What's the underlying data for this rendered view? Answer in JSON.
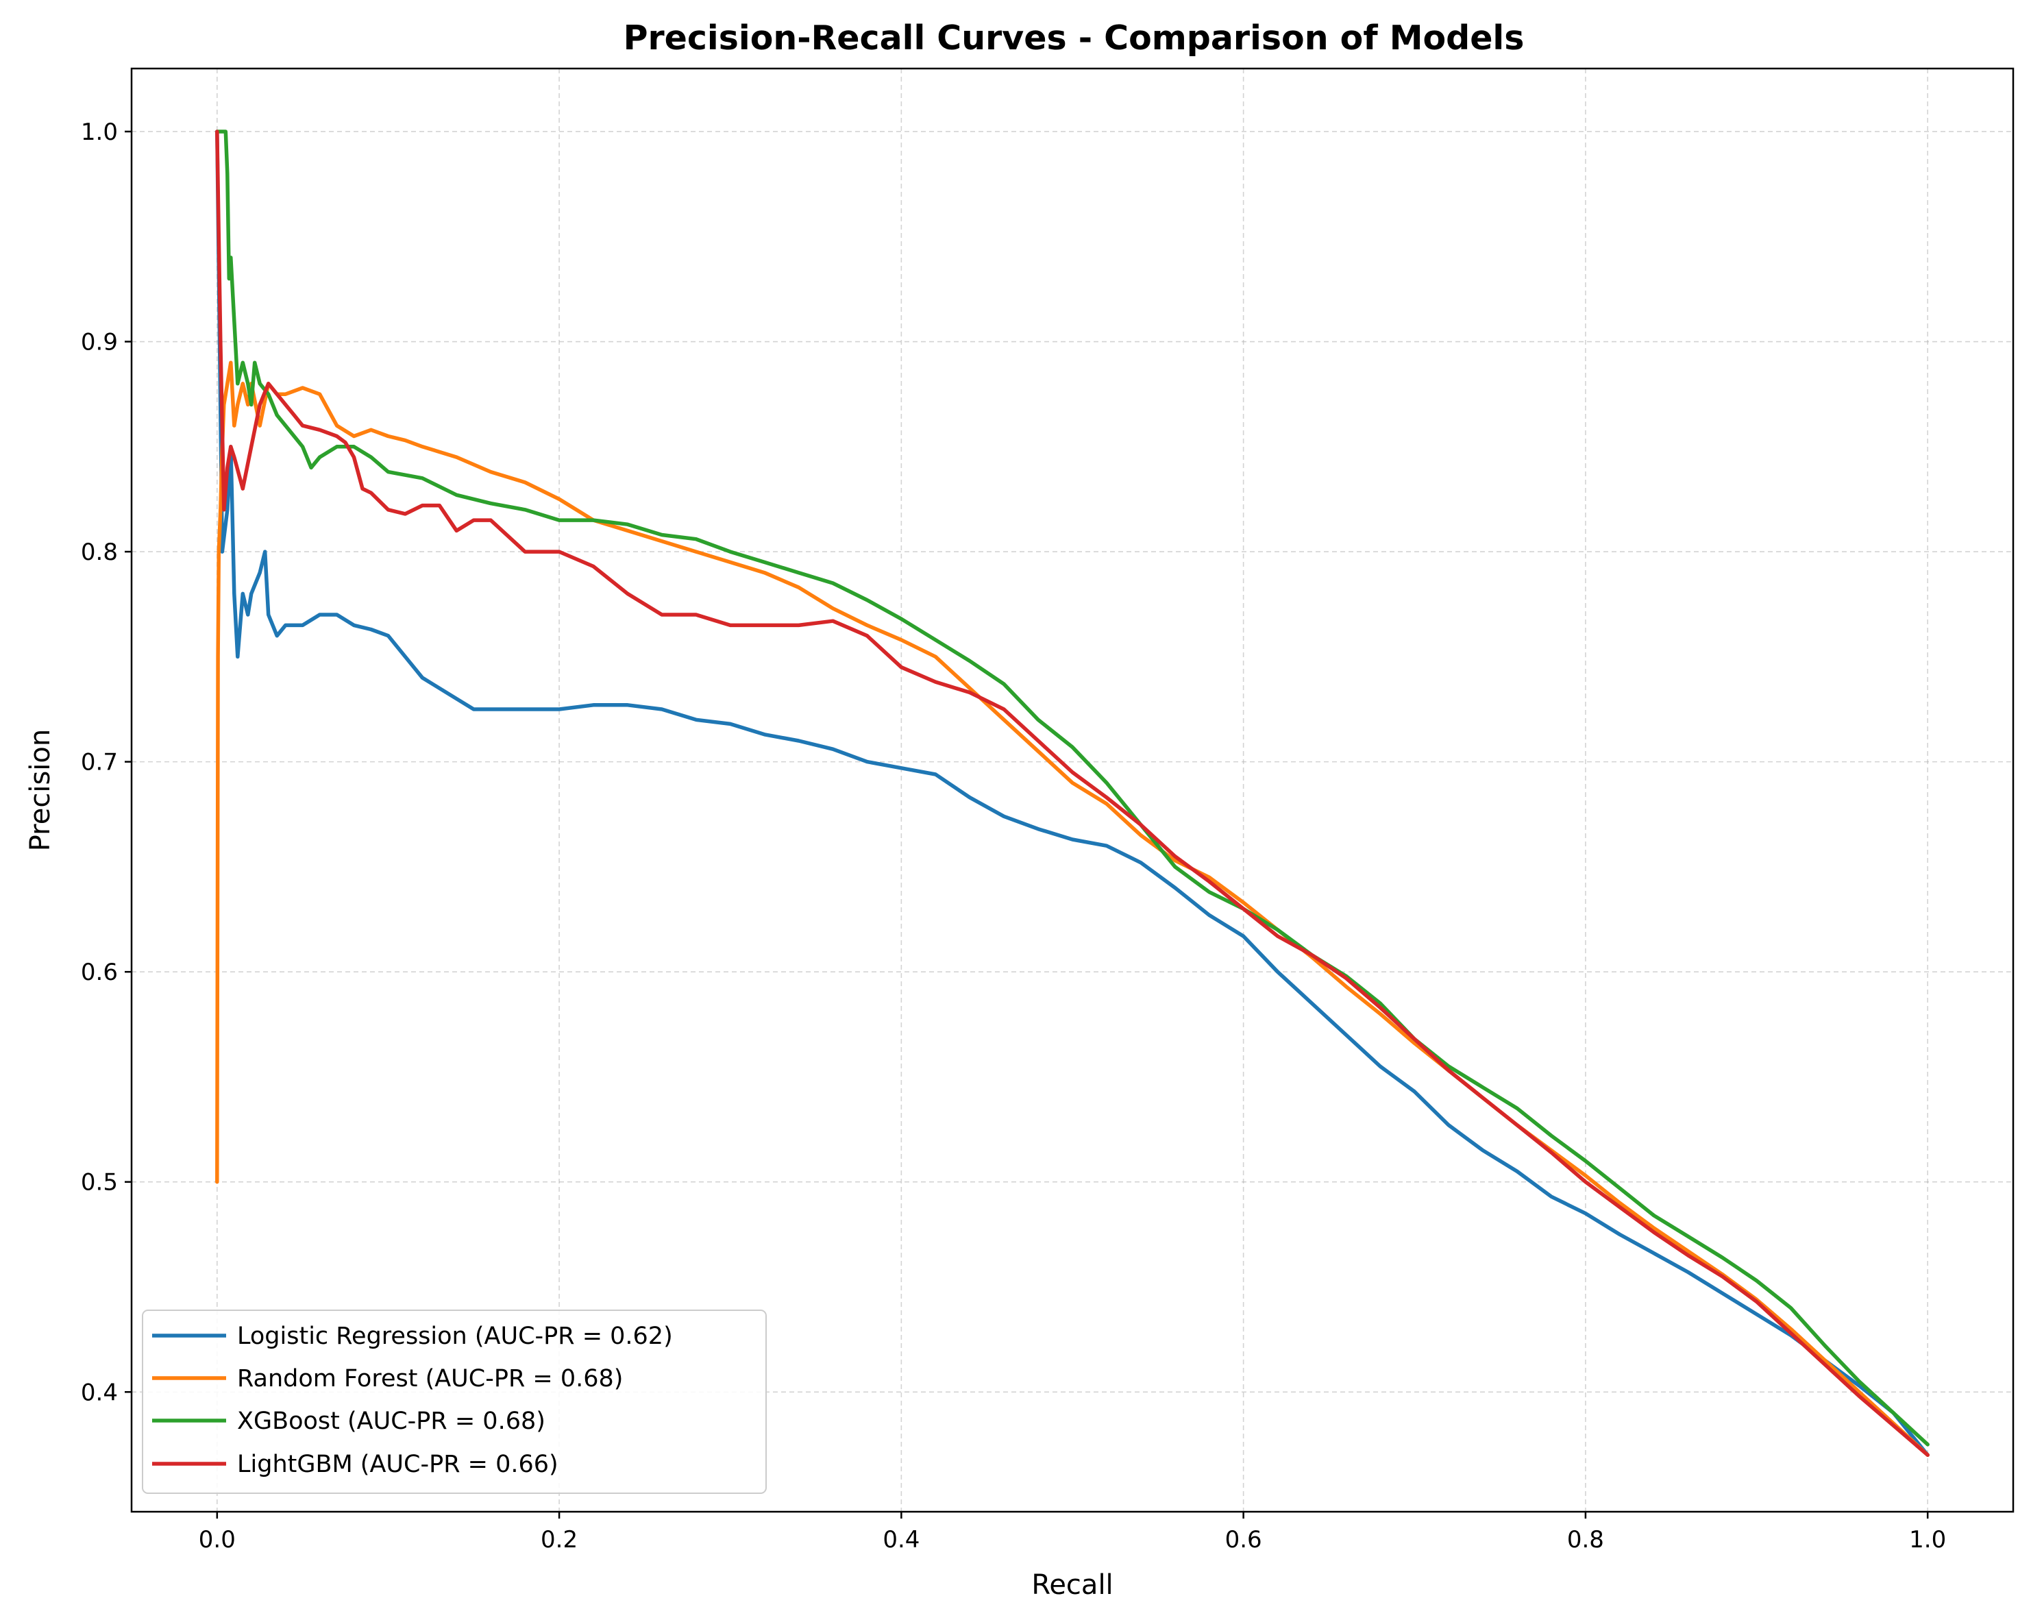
{
  "chart_data": {
    "type": "line",
    "title": "Precision-Recall Curves - Comparison of Models",
    "xlabel": "Recall",
    "ylabel": "Precision",
    "xlim": [
      -0.05,
      1.05
    ],
    "ylim": [
      0.343,
      1.03
    ],
    "x_ticks": [
      0.0,
      0.2,
      0.4,
      0.6,
      0.8,
      1.0
    ],
    "y_ticks": [
      0.4,
      0.5,
      0.6,
      0.7,
      0.8,
      0.9,
      1.0
    ],
    "grid": true,
    "legend_position": "lower-left",
    "series": [
      {
        "name": "Logistic Regression (AUC-PR = 0.62)",
        "color": "#1f77b4",
        "x": [
          0.0,
          0.003,
          0.006,
          0.008,
          0.01,
          0.012,
          0.015,
          0.018,
          0.02,
          0.025,
          0.028,
          0.03,
          0.035,
          0.04,
          0.05,
          0.06,
          0.07,
          0.08,
          0.09,
          0.1,
          0.11,
          0.12,
          0.13,
          0.14,
          0.15,
          0.16,
          0.18,
          0.2,
          0.22,
          0.24,
          0.26,
          0.28,
          0.3,
          0.32,
          0.34,
          0.36,
          0.38,
          0.4,
          0.42,
          0.44,
          0.46,
          0.48,
          0.5,
          0.52,
          0.54,
          0.56,
          0.58,
          0.6,
          0.62,
          0.64,
          0.66,
          0.68,
          0.7,
          0.72,
          0.74,
          0.76,
          0.78,
          0.8,
          0.82,
          0.84,
          0.86,
          0.88,
          0.9,
          0.92,
          0.94,
          0.96,
          0.98,
          1.0
        ],
        "values": [
          1.0,
          0.8,
          0.82,
          0.85,
          0.78,
          0.75,
          0.78,
          0.77,
          0.78,
          0.79,
          0.8,
          0.77,
          0.76,
          0.765,
          0.765,
          0.77,
          0.77,
          0.765,
          0.763,
          0.76,
          0.75,
          0.74,
          0.735,
          0.73,
          0.725,
          0.725,
          0.725,
          0.725,
          0.727,
          0.727,
          0.725,
          0.72,
          0.718,
          0.713,
          0.71,
          0.706,
          0.7,
          0.697,
          0.694,
          0.683,
          0.674,
          0.668,
          0.663,
          0.66,
          0.652,
          0.64,
          0.627,
          0.617,
          0.6,
          0.585,
          0.57,
          0.555,
          0.543,
          0.527,
          0.515,
          0.505,
          0.493,
          0.485,
          0.475,
          0.466,
          0.457,
          0.447,
          0.437,
          0.427,
          0.415,
          0.403,
          0.39,
          0.37
        ]
      },
      {
        "name": "Random Forest (AUC-PR = 0.68)",
        "color": "#ff7f0e",
        "x": [
          0.0,
          0.0005,
          0.001,
          0.002,
          0.003,
          0.004,
          0.006,
          0.008,
          0.01,
          0.012,
          0.015,
          0.018,
          0.02,
          0.025,
          0.03,
          0.035,
          0.04,
          0.05,
          0.06,
          0.07,
          0.08,
          0.09,
          0.1,
          0.11,
          0.12,
          0.14,
          0.16,
          0.18,
          0.2,
          0.22,
          0.24,
          0.26,
          0.28,
          0.3,
          0.32,
          0.34,
          0.36,
          0.38,
          0.4,
          0.42,
          0.44,
          0.46,
          0.48,
          0.5,
          0.52,
          0.54,
          0.56,
          0.58,
          0.6,
          0.62,
          0.64,
          0.66,
          0.68,
          0.7,
          0.72,
          0.74,
          0.76,
          0.78,
          0.8,
          0.82,
          0.84,
          0.86,
          0.88,
          0.9,
          0.92,
          0.94,
          0.96,
          0.98,
          1.0
        ],
        "values": [
          0.5,
          0.75,
          0.8,
          0.82,
          0.85,
          0.87,
          0.88,
          0.89,
          0.86,
          0.87,
          0.88,
          0.87,
          0.88,
          0.86,
          0.88,
          0.875,
          0.875,
          0.878,
          0.875,
          0.86,
          0.855,
          0.858,
          0.855,
          0.853,
          0.85,
          0.845,
          0.838,
          0.833,
          0.825,
          0.815,
          0.81,
          0.805,
          0.8,
          0.795,
          0.79,
          0.783,
          0.773,
          0.765,
          0.758,
          0.75,
          0.735,
          0.72,
          0.705,
          0.69,
          0.68,
          0.665,
          0.653,
          0.645,
          0.633,
          0.62,
          0.607,
          0.593,
          0.58,
          0.566,
          0.553,
          0.54,
          0.527,
          0.515,
          0.503,
          0.49,
          0.478,
          0.467,
          0.456,
          0.444,
          0.43,
          0.415,
          0.4,
          0.385,
          0.37
        ]
      },
      {
        "name": "XGBoost (AUC-PR = 0.68)",
        "color": "#2ca02c",
        "x": [
          0.0,
          0.005,
          0.006,
          0.007,
          0.008,
          0.01,
          0.012,
          0.015,
          0.018,
          0.02,
          0.022,
          0.025,
          0.03,
          0.035,
          0.04,
          0.05,
          0.055,
          0.06,
          0.07,
          0.08,
          0.09,
          0.1,
          0.12,
          0.14,
          0.16,
          0.18,
          0.2,
          0.22,
          0.24,
          0.26,
          0.28,
          0.3,
          0.32,
          0.34,
          0.36,
          0.38,
          0.4,
          0.42,
          0.44,
          0.46,
          0.48,
          0.5,
          0.52,
          0.54,
          0.56,
          0.58,
          0.6,
          0.62,
          0.64,
          0.66,
          0.68,
          0.7,
          0.72,
          0.74,
          0.76,
          0.78,
          0.8,
          0.82,
          0.84,
          0.86,
          0.88,
          0.9,
          0.92,
          0.94,
          0.96,
          0.98,
          1.0
        ],
        "values": [
          1.0,
          1.0,
          0.98,
          0.93,
          0.94,
          0.91,
          0.88,
          0.89,
          0.88,
          0.87,
          0.89,
          0.88,
          0.875,
          0.865,
          0.86,
          0.85,
          0.84,
          0.845,
          0.85,
          0.85,
          0.845,
          0.838,
          0.835,
          0.827,
          0.823,
          0.82,
          0.815,
          0.815,
          0.813,
          0.808,
          0.806,
          0.8,
          0.795,
          0.79,
          0.785,
          0.777,
          0.768,
          0.758,
          0.748,
          0.737,
          0.72,
          0.707,
          0.69,
          0.67,
          0.65,
          0.638,
          0.63,
          0.62,
          0.608,
          0.598,
          0.585,
          0.568,
          0.555,
          0.545,
          0.535,
          0.522,
          0.51,
          0.497,
          0.484,
          0.474,
          0.464,
          0.453,
          0.44,
          0.422,
          0.405,
          0.39,
          0.375
        ]
      },
      {
        "name": "LightGBM (AUC-PR = 0.66)",
        "color": "#d62728",
        "x": [
          0.0,
          0.002,
          0.004,
          0.006,
          0.008,
          0.01,
          0.015,
          0.02,
          0.025,
          0.03,
          0.035,
          0.04,
          0.045,
          0.05,
          0.06,
          0.07,
          0.075,
          0.08,
          0.085,
          0.09,
          0.1,
          0.11,
          0.12,
          0.13,
          0.14,
          0.15,
          0.16,
          0.18,
          0.2,
          0.22,
          0.24,
          0.26,
          0.28,
          0.3,
          0.32,
          0.34,
          0.36,
          0.38,
          0.4,
          0.42,
          0.44,
          0.46,
          0.48,
          0.5,
          0.52,
          0.54,
          0.56,
          0.58,
          0.6,
          0.62,
          0.64,
          0.66,
          0.68,
          0.7,
          0.72,
          0.74,
          0.76,
          0.78,
          0.8,
          0.82,
          0.84,
          0.86,
          0.88,
          0.9,
          0.92,
          0.94,
          0.96,
          0.98,
          1.0
        ],
        "values": [
          1.0,
          0.9,
          0.82,
          0.84,
          0.85,
          0.845,
          0.83,
          0.85,
          0.87,
          0.88,
          0.875,
          0.87,
          0.865,
          0.86,
          0.858,
          0.855,
          0.852,
          0.845,
          0.83,
          0.828,
          0.82,
          0.818,
          0.822,
          0.822,
          0.81,
          0.815,
          0.815,
          0.8,
          0.8,
          0.793,
          0.78,
          0.77,
          0.77,
          0.765,
          0.765,
          0.765,
          0.767,
          0.76,
          0.745,
          0.738,
          0.733,
          0.725,
          0.71,
          0.695,
          0.683,
          0.67,
          0.655,
          0.643,
          0.63,
          0.617,
          0.608,
          0.597,
          0.583,
          0.568,
          0.553,
          0.54,
          0.527,
          0.514,
          0.5,
          0.488,
          0.476,
          0.465,
          0.455,
          0.443,
          0.428,
          0.413,
          0.398,
          0.384,
          0.37
        ]
      }
    ]
  }
}
